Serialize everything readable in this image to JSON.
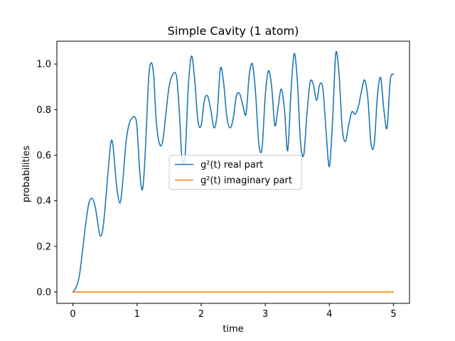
{
  "chart_data": {
    "type": "line",
    "title": "Simple Cavity (1 atom)",
    "xlabel": "time",
    "ylabel": "probabilities",
    "xlim": [
      -0.25,
      5.25
    ],
    "ylim": [
      -0.05,
      1.1
    ],
    "xticks": [
      0,
      1,
      2,
      3,
      4,
      5
    ],
    "xtick_labels": [
      "0",
      "1",
      "2",
      "3",
      "4",
      "5"
    ],
    "yticks": [
      0.0,
      0.2,
      0.4,
      0.6,
      0.8,
      1.0
    ],
    "ytick_labels": [
      "0.0",
      "0.2",
      "0.4",
      "0.6",
      "0.8",
      "1.0"
    ],
    "grid": false,
    "legend_position": "center",
    "series": [
      {
        "name": "g²(t) real part",
        "color": "#1f77b4",
        "x": [
          0,
          0.05,
          0.1,
          0.15,
          0.2,
          0.25,
          0.3,
          0.35,
          0.4,
          0.43,
          0.47,
          0.52,
          0.57,
          0.6,
          0.63,
          0.68,
          0.73,
          0.77,
          0.83,
          0.88,
          0.93,
          0.97,
          1.0,
          1.05,
          1.09,
          1.13,
          1.18,
          1.22,
          1.26,
          1.3,
          1.35,
          1.4,
          1.45,
          1.5,
          1.56,
          1.62,
          1.67,
          1.7,
          1.75,
          1.8,
          1.85,
          1.9,
          1.95,
          2.0,
          2.05,
          2.1,
          2.15,
          2.2,
          2.25,
          2.3,
          2.35,
          2.4,
          2.45,
          2.5,
          2.55,
          2.6,
          2.65,
          2.7,
          2.75,
          2.8,
          2.85,
          2.9,
          2.95,
          3.0,
          3.05,
          3.1,
          3.15,
          3.2,
          3.25,
          3.3,
          3.35,
          3.4,
          3.45,
          3.5,
          3.55,
          3.6,
          3.65,
          3.7,
          3.75,
          3.8,
          3.85,
          3.9,
          3.95,
          4.0,
          4.05,
          4.1,
          4.15,
          4.2,
          4.25,
          4.3,
          4.35,
          4.4,
          4.45,
          4.5,
          4.55,
          4.6,
          4.65,
          4.7,
          4.75,
          4.8,
          4.85,
          4.9,
          4.95,
          5.0
        ],
        "y": [
          0.0,
          0.02,
          0.07,
          0.18,
          0.3,
          0.39,
          0.41,
          0.37,
          0.28,
          0.245,
          0.28,
          0.43,
          0.6,
          0.665,
          0.63,
          0.47,
          0.39,
          0.46,
          0.66,
          0.74,
          0.765,
          0.765,
          0.72,
          0.5,
          0.455,
          0.62,
          0.93,
          1.005,
          0.95,
          0.75,
          0.65,
          0.66,
          0.78,
          0.9,
          0.955,
          0.94,
          0.74,
          0.59,
          0.6,
          0.9,
          1.035,
          0.93,
          0.75,
          0.73,
          0.84,
          0.86,
          0.8,
          0.72,
          0.78,
          0.98,
          0.92,
          0.77,
          0.72,
          0.76,
          0.86,
          0.87,
          0.82,
          0.78,
          0.95,
          1.0,
          0.87,
          0.65,
          0.63,
          0.86,
          0.97,
          0.9,
          0.73,
          0.81,
          0.89,
          0.8,
          0.62,
          0.87,
          1.045,
          0.93,
          0.66,
          0.6,
          0.78,
          0.92,
          0.91,
          0.84,
          0.91,
          0.89,
          0.7,
          0.55,
          0.75,
          1.045,
          0.96,
          0.72,
          0.66,
          0.73,
          0.79,
          0.78,
          0.81,
          0.88,
          0.93,
          0.85,
          0.65,
          0.65,
          0.86,
          0.94,
          0.8,
          0.72,
          0.93,
          0.955
        ]
      },
      {
        "name": "g²(t) imaginary part",
        "color": "#ff7f0e",
        "x": [
          0,
          5.0
        ],
        "y": [
          0.0,
          0.0
        ]
      }
    ]
  }
}
